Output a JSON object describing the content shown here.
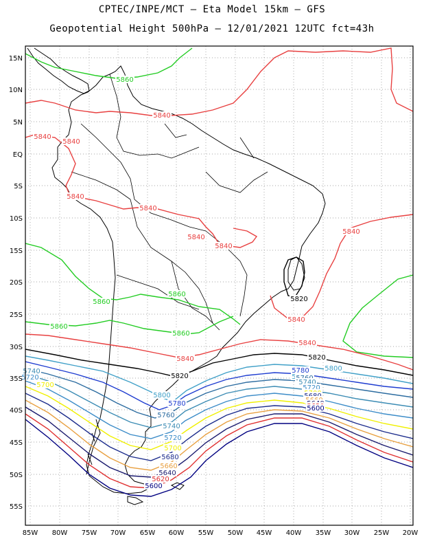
{
  "header": {
    "line1": "CPTEC/INPE/MCT –  Eta Model 15km – GFS",
    "line2": "Geopotential Height 500hPa – 12/01/2021 12UTC fct=43h"
  },
  "axes": {
    "lat_ticks": [
      "15N",
      "10N",
      "5N",
      "EQ",
      "5S",
      "10S",
      "15S",
      "20S",
      "25S",
      "30S",
      "35S",
      "40S",
      "45S",
      "50S",
      "55S"
    ],
    "lon_ticks": [
      "85W",
      "80W",
      "75W",
      "70W",
      "65W",
      "60W",
      "55W",
      "50W",
      "45W",
      "40W",
      "35W",
      "30W",
      "25W",
      "20W"
    ]
  },
  "colors": {
    "5600": "#000080",
    "5620": "#e03030",
    "5640": "#1a1a6e",
    "5660": "#e8a040",
    "5680": "#1c2c8c",
    "5700": "#f0f000",
    "5720": "#3c8cc8",
    "5740": "#3c8cb4",
    "5760": "#2c6ca0",
    "5780": "#1e3cd0",
    "5800": "#40a0c8",
    "5820": "#000000",
    "5840": "#e84040",
    "5860": "#22cc22",
    "coast": "#000000",
    "grid": "#888888"
  },
  "contour_labels": [
    {
      "text": "5860",
      "lvl": "5860"
    },
    {
      "text": "5840",
      "lvl": "5840"
    },
    {
      "text": "5820",
      "lvl": "5820"
    },
    {
      "text": "5800",
      "lvl": "5800"
    },
    {
      "text": "5780",
      "lvl": "5780"
    },
    {
      "text": "5760",
      "lvl": "5760"
    },
    {
      "text": "5740",
      "lvl": "5740"
    },
    {
      "text": "5720",
      "lvl": "5720"
    },
    {
      "text": "5700",
      "lvl": "5700"
    },
    {
      "text": "5680",
      "lvl": "5680"
    },
    {
      "text": "5660",
      "lvl": "5660"
    },
    {
      "text": "5640",
      "lvl": "5640"
    },
    {
      "text": "5620",
      "lvl": "5620"
    },
    {
      "text": "5600",
      "lvl": "5600"
    }
  ]
}
